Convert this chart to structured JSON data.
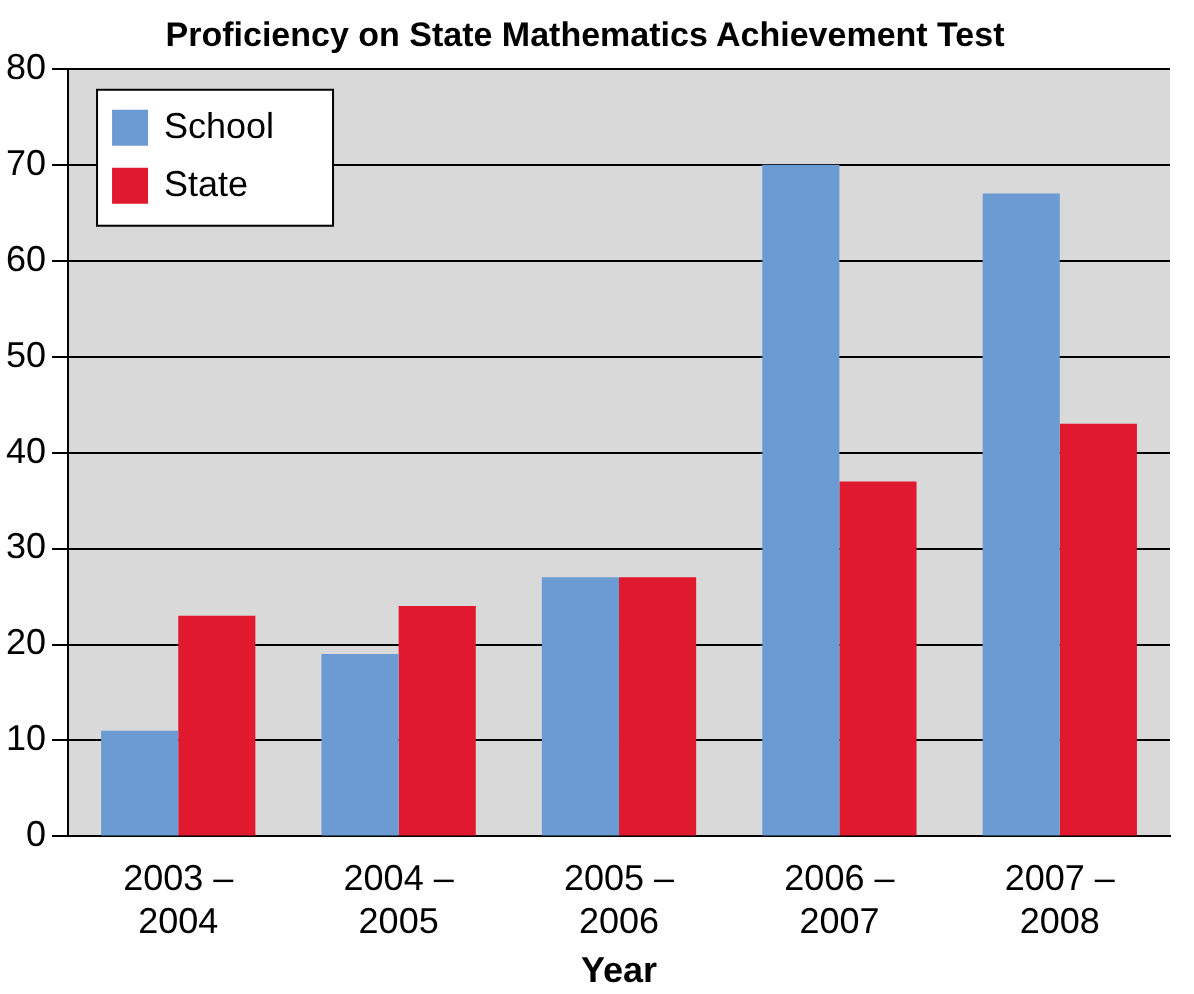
{
  "chart_data": {
    "type": "bar",
    "title": "Proficiency on State Mathematics Achievement Test",
    "xlabel": "Year",
    "categories": [
      "2003 –\n2004",
      "2004 –\n2005",
      "2005 –\n2006",
      "2006 –\n2007",
      "2007 –\n2008"
    ],
    "series": [
      {
        "name": "School",
        "color": "#6b9bd2",
        "values": [
          11,
          19,
          27,
          70,
          67
        ]
      },
      {
        "name": "State",
        "color": "#e1192f",
        "values": [
          23,
          24,
          27,
          37,
          43
        ]
      }
    ],
    "ylim": [
      0,
      80
    ],
    "yticks": [
      0,
      10,
      20,
      30,
      40,
      50,
      60,
      70,
      80
    ],
    "grid": "y",
    "legend": "top left"
  }
}
